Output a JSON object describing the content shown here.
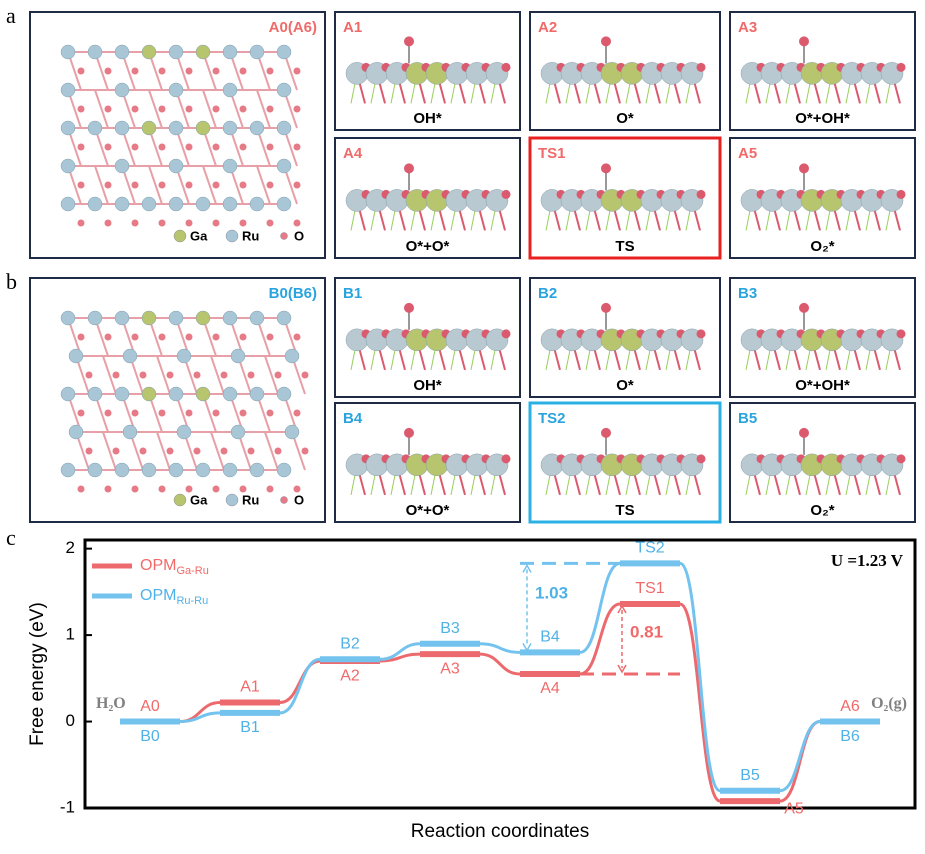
{
  "panel_labels": [
    "a",
    "b",
    "c"
  ],
  "panels": [
    {
      "overview": "A0(A6)",
      "legend": [
        "Ga",
        "Ru",
        "O"
      ],
      "cells": [
        {
          "id": "A1",
          "caption": "OH*"
        },
        {
          "id": "A2",
          "caption": "O*"
        },
        {
          "id": "A3",
          "caption": "O*+OH*"
        },
        {
          "id": "A4",
          "caption": "O*+O*"
        },
        {
          "id": "TS1",
          "caption": "TS"
        },
        {
          "id": "A5",
          "caption": "O₂*"
        }
      ]
    },
    {
      "overview": "B0(B6)",
      "legend": [
        "Ga",
        "Ru",
        "O"
      ],
      "cells": [
        {
          "id": "B1",
          "caption": "OH*"
        },
        {
          "id": "B2",
          "caption": "O*"
        },
        {
          "id": "B3",
          "caption": "O*+OH*"
        },
        {
          "id": "B4",
          "caption": "O*+O*"
        },
        {
          "id": "TS2",
          "caption": "TS"
        },
        {
          "id": "B5",
          "caption": "O₂*"
        }
      ]
    }
  ],
  "chart_data": {
    "type": "energy-profile",
    "ylabel": "Free energy (eV)",
    "xlabel": "Reaction coordinates",
    "ylim": [
      -1,
      2.1
    ],
    "yticks": [
      -1,
      0,
      1,
      2
    ],
    "start_label": "H₂O",
    "end_label": "O₂(g)",
    "condition": "U =1.23 V",
    "barrier_labels": [
      "1.03",
      "0.81"
    ],
    "series": [
      {
        "name": "OPM",
        "name_subscript": "Ga-Ru",
        "color": "#ec6a6e",
        "label_color": "#f06a6a",
        "point_labels": [
          "A0",
          "A1",
          "A2",
          "A3",
          "A4",
          "TS1",
          "A5",
          "A6"
        ],
        "values": [
          0,
          0.22,
          0.7,
          0.78,
          0.55,
          1.36,
          -0.92,
          0
        ]
      },
      {
        "name": "OPM",
        "name_subscript": "Ru-Ru",
        "color": "#74c3ee",
        "label_color": "#4fb2e6",
        "point_labels": [
          "B0",
          "B1",
          "B2",
          "B3",
          "B4",
          "TS2",
          "B5",
          "B6"
        ],
        "values": [
          0,
          0.1,
          0.72,
          0.9,
          0.8,
          1.83,
          -0.8,
          0
        ]
      }
    ]
  }
}
